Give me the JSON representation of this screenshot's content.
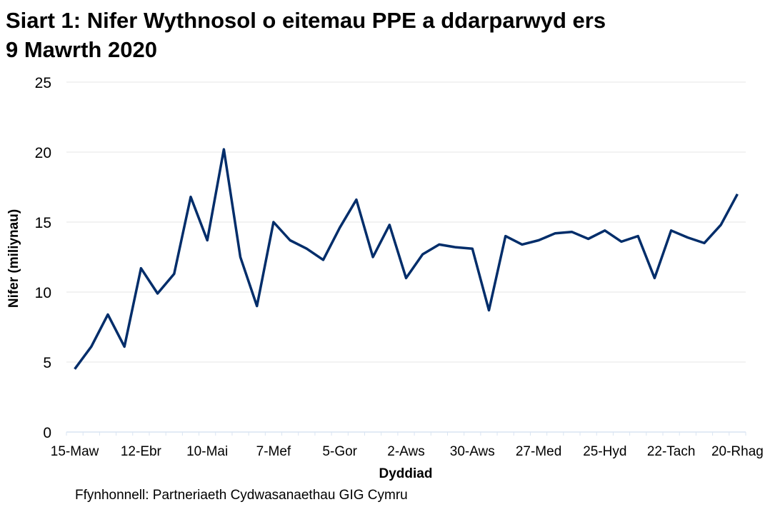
{
  "chart_data": {
    "type": "line",
    "title": "Siart 1: Nifer Wythnosol o eitemau PPE a ddarparwyd ers 9 Mawrth 2020",
    "title_lines": [
      "Siart 1: Nifer Wythnosol o eitemau PPE a ddarparwyd ers",
      "9 Mawrth 2020"
    ],
    "xlabel": "Dyddiad",
    "ylabel": "Nifer (miliynau)",
    "ylim": [
      0,
      25
    ],
    "yticks": [
      0,
      5,
      10,
      15,
      20,
      25
    ],
    "grid": true,
    "legend": "none",
    "line_color": "#002D6A",
    "x_tick_labels": [
      "15-Maw",
      "12-Ebr",
      "10-Mai",
      "7-Mef",
      "5-Gor",
      "2-Aws",
      "30-Aws",
      "27-Med",
      "25-Hyd",
      "22-Tach",
      "20-Rhag"
    ],
    "x_tick_every": 4,
    "series": [
      {
        "values": [
          4.5,
          6.1,
          8.4,
          6.1,
          11.7,
          9.9,
          11.3,
          16.8,
          13.7,
          20.2,
          12.5,
          9.0,
          15.0,
          13.7,
          13.1,
          12.3,
          14.6,
          16.6,
          12.5,
          14.8,
          11.0,
          12.7,
          13.4,
          13.2,
          13.1,
          8.7,
          14.0,
          13.4,
          13.7,
          14.2,
          14.3,
          13.8,
          14.4,
          13.6,
          14.0,
          11.0,
          14.4,
          13.9,
          13.5,
          14.8,
          17.0
        ]
      }
    ]
  },
  "source": "Ffynhonnell: Partneriaeth Cydwasanaethau GIG Cymru"
}
